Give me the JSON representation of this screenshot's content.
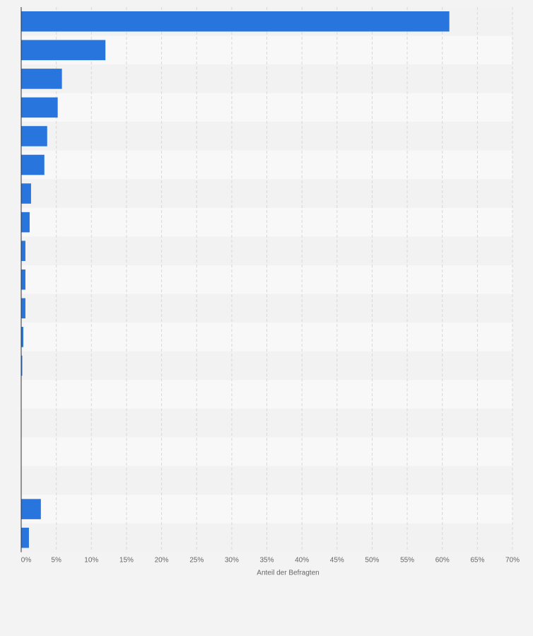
{
  "chart_data": {
    "type": "bar",
    "orientation": "horizontal",
    "categories": [
      "",
      "",
      "",
      "",
      "",
      "",
      "",
      "",
      "",
      "",
      "",
      "",
      "",
      "",
      "",
      "",
      "",
      "",
      ""
    ],
    "values": [
      61.0,
      12.0,
      5.8,
      5.2,
      3.7,
      3.3,
      1.4,
      1.2,
      0.6,
      0.6,
      0.6,
      0.3,
      0.15,
      0,
      0,
      0,
      0,
      2.8,
      1.1
    ],
    "xlabel": "Anteil der Befragten",
    "ylabel": "",
    "xlim": [
      0,
      70
    ],
    "xticks": [
      "0%",
      "5%",
      "10%",
      "15%",
      "20%",
      "25%",
      "30%",
      "35%",
      "40%",
      "45%",
      "50%",
      "55%",
      "60%",
      "65%",
      "70%"
    ],
    "grid": true,
    "bar_color": "#2775dd",
    "band_colors": [
      "#f2f2f2",
      "#f8f8f8"
    ],
    "background": "#f3f3f3",
    "gridline_color": "#d8d8d8"
  }
}
